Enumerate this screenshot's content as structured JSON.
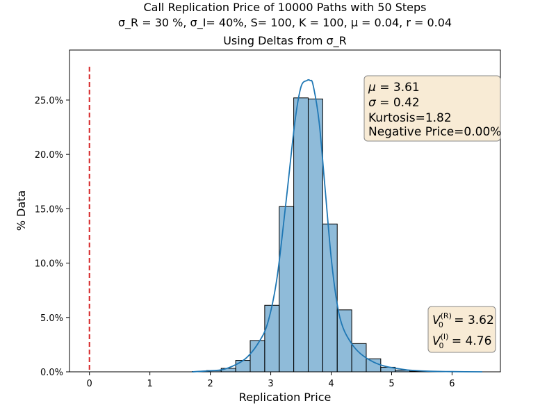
{
  "chart_data": {
    "type": "bar",
    "title_lines": [
      "Call Replication Price of 10000 Paths with 50 Steps",
      "σ_R = 30 %, σ_I= 40%, S= 100, K = 100, μ = 0.04, r = 0.04"
    ],
    "subtitle": "Using Deltas from σ_R",
    "xlabel": "Replication Price",
    "ylabel": "% Data",
    "xlim": [
      -0.33,
      6.8
    ],
    "ylim": [
      0,
      0.296
    ],
    "xticks": [
      0,
      1,
      2,
      3,
      4,
      5,
      6
    ],
    "yticks": [
      0.0,
      0.05,
      0.1,
      0.15,
      0.2,
      0.25
    ],
    "ytick_labels": [
      "0.0%",
      "5.0%",
      "10.0%",
      "15.0%",
      "20.0%",
      "25.0%"
    ],
    "bin_edges": [
      1.7,
      1.94,
      2.18,
      2.42,
      2.66,
      2.9,
      3.14,
      3.38,
      3.62,
      3.86,
      4.1,
      4.34,
      4.58,
      4.82,
      5.06,
      5.3,
      5.54,
      5.78,
      6.02,
      6.26,
      6.5
    ],
    "values": [
      0.0003,
      0.0012,
      0.0032,
      0.0105,
      0.0288,
      0.0612,
      0.152,
      0.252,
      0.251,
      0.136,
      0.057,
      0.026,
      0.012,
      0.0042,
      0.0015,
      0.0005,
      0.0002,
      0.0001,
      0.0,
      0.0
    ],
    "kde": {
      "x": [
        1.7,
        2.0,
        2.2,
        2.4,
        2.6,
        2.8,
        2.95,
        3.1,
        3.25,
        3.4,
        3.5,
        3.6,
        3.65,
        3.7,
        3.8,
        3.9,
        4.0,
        4.1,
        4.2,
        4.35,
        4.5,
        4.7,
        4.9,
        5.1,
        5.3,
        5.6,
        6.0,
        6.5
      ],
      "y": [
        0.0,
        0.001,
        0.002,
        0.006,
        0.013,
        0.027,
        0.045,
        0.085,
        0.155,
        0.23,
        0.262,
        0.268,
        0.268,
        0.264,
        0.23,
        0.168,
        0.105,
        0.062,
        0.04,
        0.025,
        0.016,
        0.009,
        0.005,
        0.003,
        0.0015,
        0.0006,
        0.0002,
        0.0
      ]
    },
    "vline": {
      "x": 0,
      "color": "#d62728",
      "style": "dashed"
    },
    "colors": {
      "bars": "#1f77b4",
      "kde": "#1f77b4"
    },
    "stats_box": {
      "mu_label": "μ",
      "mu_value": "3.61",
      "sigma_label": "σ",
      "sigma_value": "0.42",
      "kurtosis": "Kurtosis=1.82",
      "negative_price": "Negative Price=0.00%"
    },
    "value_box": {
      "v_r": "3.62",
      "v_i": "4.76"
    },
    "grid": false,
    "legend": "none"
  }
}
